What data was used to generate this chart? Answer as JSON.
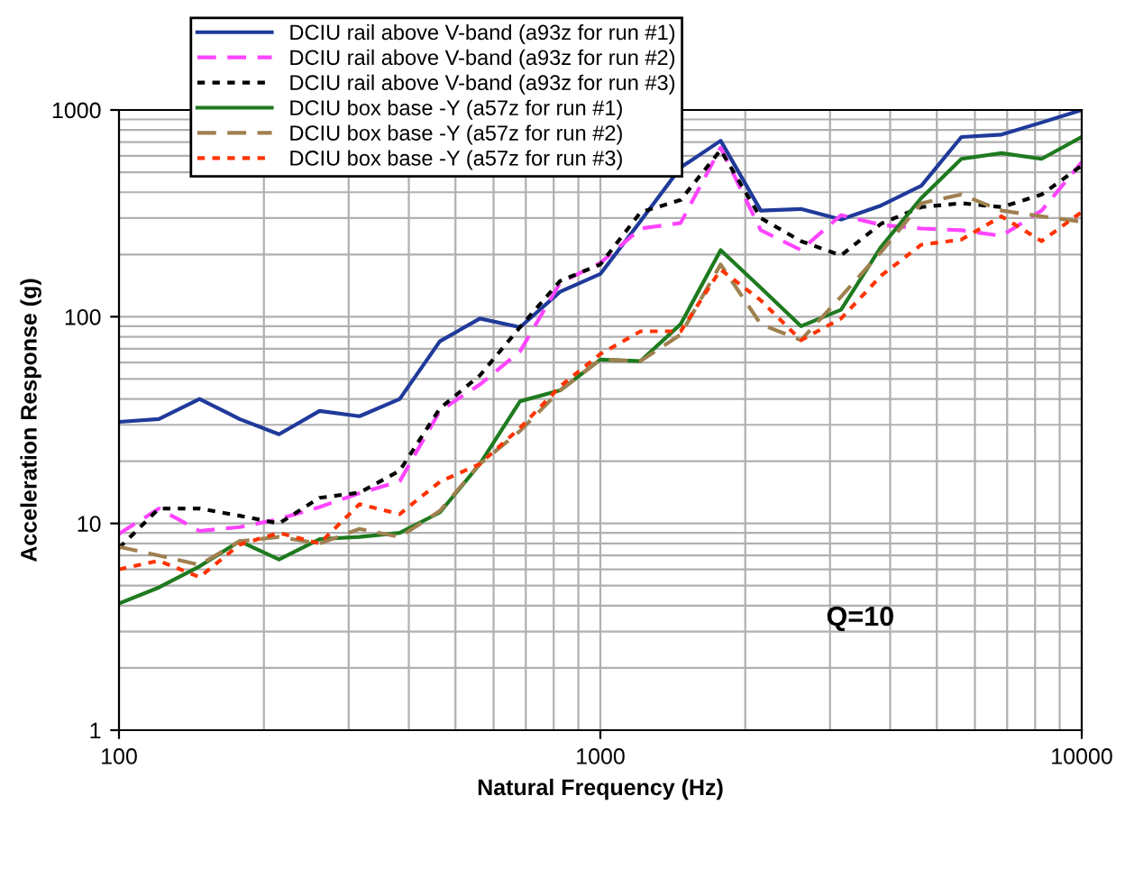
{
  "chart_data": {
    "type": "line",
    "xlabel": "Natural Frequency (Hz)",
    "ylabel": "Acceleration Response (g)",
    "log": "xy",
    "grid": true,
    "legend": "top left",
    "x": [
      100,
      121,
      147,
      178,
      215,
      261,
      316,
      383,
      464,
      562,
      681,
      825,
      1000,
      1212,
      1468,
      1778,
      2154,
      2610,
      3162,
      3831,
      4642,
      5623,
      6813,
      8254,
      10000
    ],
    "xlim": [
      100,
      10000
    ],
    "xticks": [
      100,
      1000,
      10000
    ],
    "ylim": [
      1,
      1000
    ],
    "yticks": [
      1,
      10,
      100,
      1000
    ],
    "series": [
      {
        "name": "DCIU rail above V-band (a93z for run #1)",
        "color": "#1f3a9a",
        "line_style": "solid",
        "values": [
          31,
          32,
          40,
          32,
          27,
          35,
          33,
          40,
          76,
          98,
          89,
          132,
          161,
          290,
          527,
          710,
          326,
          332,
          295,
          345,
          430,
          740,
          760,
          870,
          1000
        ]
      },
      {
        "name": "DCIU rail above V-band (a93z for run #2)",
        "color": "#ff44ff",
        "line_style": "dashed",
        "values": [
          8.9,
          11.8,
          9.2,
          9.6,
          10.5,
          12,
          14,
          16,
          35,
          47,
          68,
          146,
          182,
          267,
          284,
          657,
          262,
          210,
          310,
          278,
          267,
          262,
          246,
          326,
          560
        ]
      },
      {
        "name": "DCIU rail above V-band (a93z for run #3)",
        "color": "#000000",
        "line_style": "dotted",
        "values": [
          7.6,
          11.8,
          11.8,
          10.9,
          10,
          13.3,
          14.1,
          18,
          36,
          52,
          89,
          149,
          179,
          320,
          367,
          640,
          300,
          232,
          198,
          282,
          339,
          354,
          339,
          390,
          538
        ]
      },
      {
        "name": "DCIU box base -Y (a57z for run #1)",
        "color": "#1e7a1e",
        "line_style": "solid",
        "values": [
          4.1,
          4.9,
          6.2,
          8.2,
          6.7,
          8.4,
          8.6,
          9,
          11.3,
          19.4,
          39,
          44,
          62,
          61,
          92,
          210,
          138,
          90,
          108,
          218,
          375,
          580,
          618,
          580,
          740
        ]
      },
      {
        "name": "DCIU box base -Y (a57z for run #2)",
        "color": "#a08050",
        "line_style": "dashed",
        "values": [
          7.7,
          7,
          6.3,
          8.2,
          8.6,
          8,
          9.4,
          8.6,
          11.5,
          19.4,
          28,
          44,
          62,
          61,
          82,
          179,
          92,
          77,
          125,
          206,
          354,
          390,
          326,
          306,
          288
        ]
      },
      {
        "name": "DCIU box base -Y (a57z for run #3)",
        "color": "#ff3300",
        "line_style": "dotted",
        "values": [
          6,
          6.6,
          5.5,
          7.9,
          9,
          8,
          12.4,
          11.1,
          15.9,
          19.4,
          29,
          46,
          66,
          85,
          85,
          169,
          120,
          77,
          98,
          158,
          223,
          236,
          306,
          232,
          321
        ]
      }
    ],
    "annotations": [
      "Q=10"
    ]
  }
}
